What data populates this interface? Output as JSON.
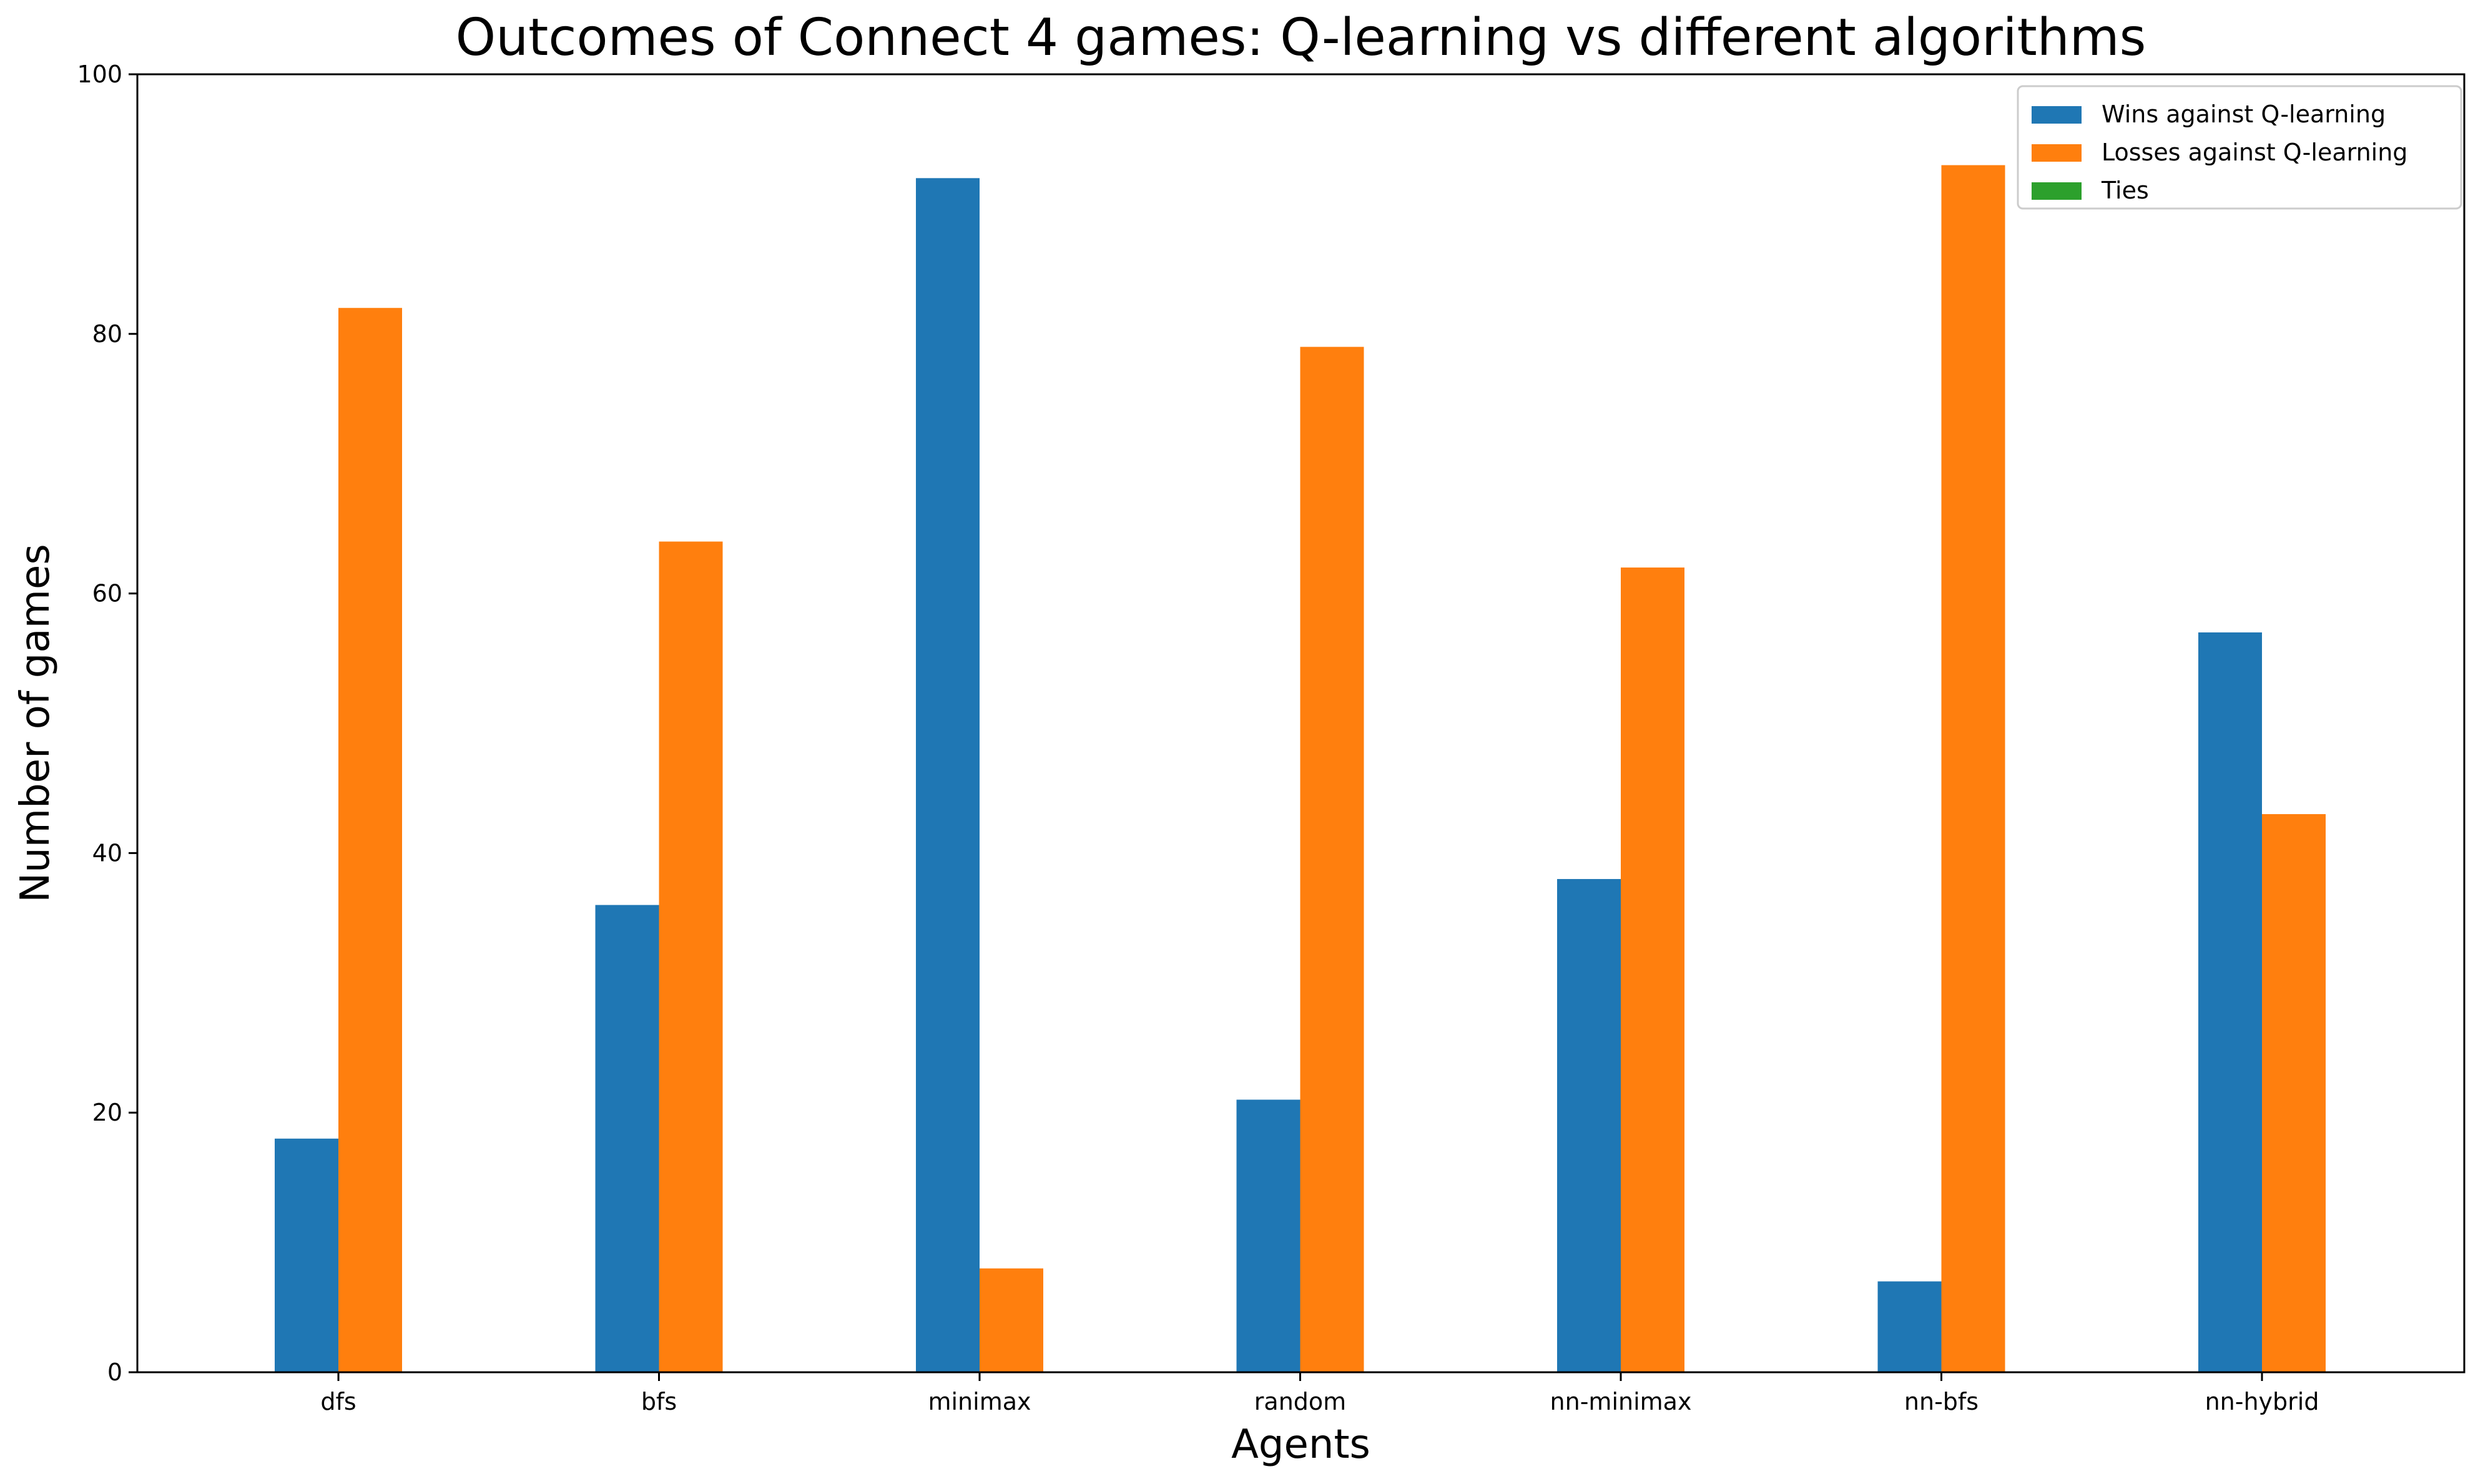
{
  "chart_data": {
    "type": "bar",
    "title": "Outcomes of Connect 4 games: Q-learning vs different algorithms",
    "xlabel": "Agents",
    "ylabel": "Number of games",
    "categories": [
      "dfs",
      "bfs",
      "minimax",
      "random",
      "nn-minimax",
      "nn-bfs",
      "nn-hybrid"
    ],
    "series": [
      {
        "name": "Wins against Q-learning",
        "color": "#1f77b4",
        "values": [
          18,
          36,
          92,
          21,
          38,
          7,
          57
        ]
      },
      {
        "name": "Losses against Q-learning",
        "color": "#ff7f0e",
        "values": [
          82,
          64,
          8,
          79,
          62,
          93,
          43
        ]
      },
      {
        "name": "Ties",
        "color": "#2ca02c",
        "values": [
          0,
          0,
          0,
          0,
          0,
          0,
          0
        ]
      }
    ],
    "ylim": [
      0,
      100
    ],
    "yticks": [
      0,
      20,
      40,
      60,
      80,
      100
    ],
    "grid": false,
    "legend_position": "top-right"
  }
}
